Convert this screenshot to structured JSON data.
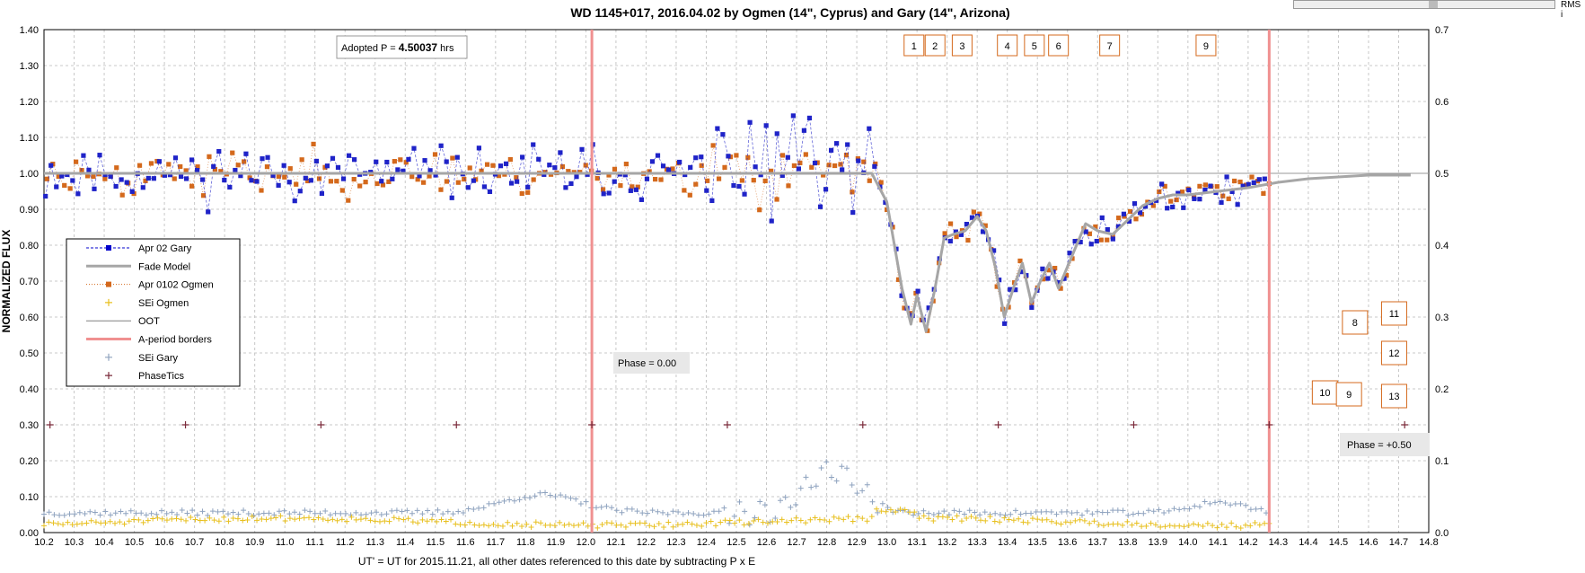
{
  "chart_data": {
    "type": "scatter",
    "title": "WD 1145+017, 2016.04.02 by Ogmen (14\", Cyprus) and Gary (14\", Arizona)",
    "xlabel": "UT' = UT for 2015.11.21, all other dates referenced to this date by subtracting P x E",
    "ylabel": "NORMALIZED FLUX",
    "xlim": [
      10.2,
      14.8
    ],
    "ylim": [
      0.0,
      1.4
    ],
    "y2lim": [
      0.0,
      0.7
    ],
    "x_ticks": [
      "10.2",
      "10.3",
      "10.4",
      "10.5",
      "10.6",
      "10.7",
      "10.8",
      "10.9",
      "11.0",
      "11.1",
      "11.2",
      "11.3",
      "11.4",
      "11.5",
      "11.6",
      "11.7",
      "11.8",
      "11.9",
      "12.0",
      "12.1",
      "12.2",
      "12.3",
      "12.4",
      "12.5",
      "12.6",
      "12.7",
      "12.8",
      "12.9",
      "13.0",
      "13.1",
      "13.2",
      "13.3",
      "13.4",
      "13.5",
      "13.6",
      "13.7",
      "13.8",
      "13.9",
      "14.0",
      "14.1",
      "14.2",
      "14.3",
      "14.4",
      "14.5",
      "14.6",
      "14.7",
      "14.8"
    ],
    "y_ticks": [
      "0.00",
      "0.10",
      "0.20",
      "0.30",
      "0.40",
      "0.50",
      "0.60",
      "0.70",
      "0.80",
      "0.90",
      "1.00",
      "1.10",
      "1.20",
      "1.30",
      "1.40"
    ],
    "y2_ticks": [
      "0.0",
      "0.1",
      "0.2",
      "0.3",
      "0.4",
      "0.5",
      "0.6",
      "0.7"
    ],
    "grid": true,
    "legend_position": "left-middle",
    "legend": [
      {
        "label": "Apr 02 Gary",
        "color": "#0000cc",
        "style": "square-dashed"
      },
      {
        "label": "Fade Model",
        "color": "#a6a6a6",
        "style": "thick-line"
      },
      {
        "label": "Apr 0102 Ogmen",
        "color": "#d4691c",
        "style": "square-dotted"
      },
      {
        "label": "SEi Ogmen",
        "color": "#e8c020",
        "style": "plus"
      },
      {
        "label": "OOT",
        "color": "#808080",
        "style": "thin-line"
      },
      {
        "label": "A-period borders",
        "color": "#f09090",
        "style": "thick-line"
      },
      {
        "label": "SEi  Gary",
        "color": "#8fa3bf",
        "style": "plus"
      },
      {
        "label": "PhaseTics",
        "color": "#7a2a3a",
        "style": "plus"
      }
    ],
    "annotations": {
      "period_prefix": "Adopted P = ",
      "period_value": "4.50037",
      "period_unit": " hrs",
      "phase0": "Phase = 0.00",
      "phase50": "Phase = +0.50"
    },
    "a_period_borders": [
      12.02,
      14.27
    ],
    "phase_tics": {
      "y": 0.3,
      "x": [
        10.22,
        10.67,
        11.12,
        11.57,
        12.02,
        12.47,
        12.92,
        13.37,
        13.82,
        14.27,
        14.72
      ]
    },
    "oot_level": 1.0,
    "top_boxes": [
      {
        "label": "1",
        "x": 13.09
      },
      {
        "label": "2",
        "x": 13.16
      },
      {
        "label": "3",
        "x": 13.25
      },
      {
        "label": "4",
        "x": 13.4
      },
      {
        "label": "5",
        "x": 13.49
      },
      {
        "label": "6",
        "x": 13.57
      },
      {
        "label": "7",
        "x": 13.74
      },
      {
        "label": "9",
        "x": 14.06
      }
    ],
    "right_boxes": [
      {
        "label": "8",
        "x": 14.555,
        "y": 0.585
      },
      {
        "label": "11",
        "x": 14.685,
        "y": 0.61
      },
      {
        "label": "12",
        "x": 14.685,
        "y": 0.5
      },
      {
        "label": "10",
        "x": 14.455,
        "y": 0.39
      },
      {
        "label": "9",
        "x": 14.535,
        "y": 0.385
      },
      {
        "label": "13",
        "x": 14.685,
        "y": 0.38
      }
    ],
    "fade_model": {
      "x": [
        10.2,
        12.8,
        12.95,
        13.0,
        13.05,
        13.08,
        13.1,
        13.13,
        13.16,
        13.19,
        13.22,
        13.26,
        13.3,
        13.33,
        13.36,
        13.39,
        13.42,
        13.45,
        13.48,
        13.51,
        13.54,
        13.57,
        13.6,
        13.63,
        13.66,
        13.7,
        13.75,
        13.8,
        13.85,
        13.9,
        13.95,
        14.0,
        14.05,
        14.1,
        14.2,
        14.3,
        14.4,
        14.5,
        14.6,
        14.74
      ],
      "y": [
        1.0,
        1.0,
        1.0,
        0.92,
        0.68,
        0.58,
        0.66,
        0.56,
        0.68,
        0.82,
        0.83,
        0.84,
        0.88,
        0.84,
        0.74,
        0.6,
        0.68,
        0.75,
        0.64,
        0.7,
        0.75,
        0.68,
        0.74,
        0.8,
        0.86,
        0.84,
        0.83,
        0.87,
        0.91,
        0.93,
        0.94,
        0.94,
        0.945,
        0.95,
        0.96,
        0.975,
        0.985,
        0.99,
        0.995,
        0.995
      ]
    },
    "series": [
      {
        "name": "Apr 02 Gary",
        "gen": {
          "x_start": 10.205,
          "x_end": 14.255,
          "n": 226,
          "seed": 11,
          "noise": 0.035,
          "spikes": true
        }
      },
      {
        "name": "Apr 0102 Ogmen",
        "gen": {
          "x_start": 10.21,
          "x_end": 14.27,
          "n": 212,
          "seed": 23,
          "noise": 0.03,
          "spikes": false
        }
      },
      {
        "name": "SEi  Gary",
        "gen": {
          "x_start": 10.2,
          "x_end": 14.26,
          "n": 240,
          "seed": 37
        }
      },
      {
        "name": "SEi Ogmen",
        "gen": {
          "x_start": 10.2,
          "x_end": 14.27,
          "n": 260,
          "seed": 51
        }
      }
    ]
  },
  "ui": {
    "rms_label": "RMS i"
  }
}
